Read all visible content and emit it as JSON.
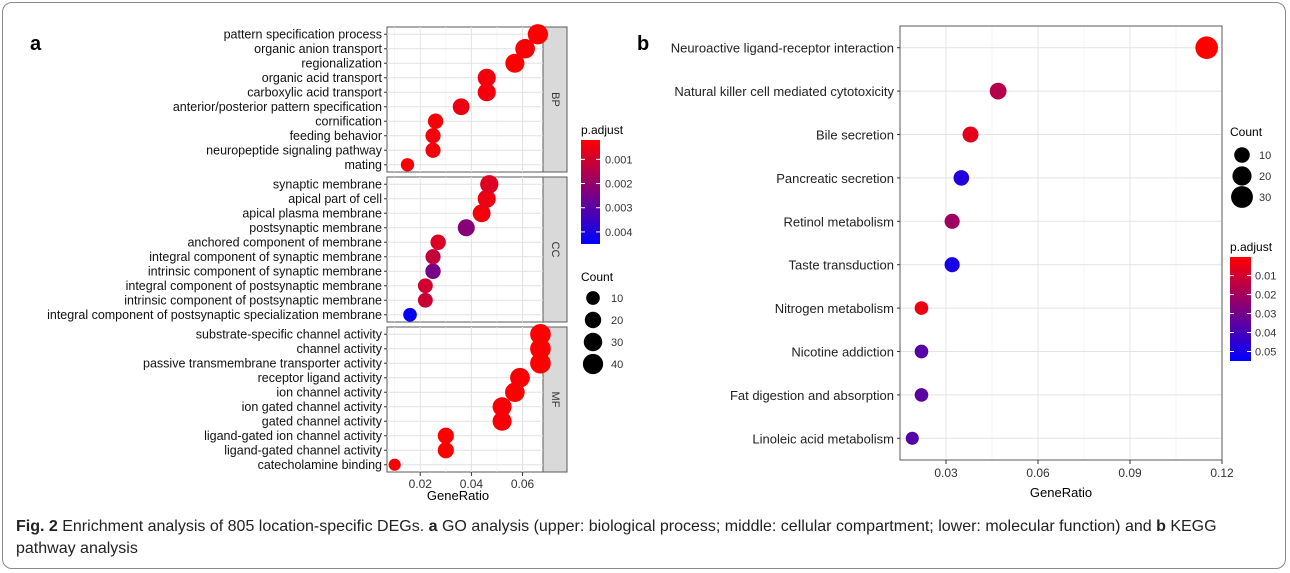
{
  "caption": {
    "fig_label": "Fig. 2",
    "text_1": "Enrichment analysis of 805 location-specific DEGs.",
    "label_a": "a",
    "text_2": "GO analysis (upper: biological process; middle: cellular compartment; lower: molecular function) and",
    "label_b": "b",
    "text_3": "KEGG pathway analysis"
  },
  "chart_data": [
    {
      "type": "scatter",
      "panel_label": "a",
      "xlabel": "GeneRatio",
      "x_ticks": [
        0.02,
        0.04,
        0.06
      ],
      "x_tick_labels": [
        "0.02",
        "0.04",
        "0.06"
      ],
      "xlim": [
        0.007,
        0.068
      ],
      "facets": [
        {
          "name": "BP",
          "points": [
            {
              "term": "pattern specification process",
              "x": 0.066,
              "count": 40,
              "p_adjust": 0.0002
            },
            {
              "term": "organic anion transport",
              "x": 0.061,
              "count": 36,
              "p_adjust": 0.0003
            },
            {
              "term": "regionalization",
              "x": 0.057,
              "count": 33,
              "p_adjust": 0.0002
            },
            {
              "term": "organic acid transport",
              "x": 0.046,
              "count": 28,
              "p_adjust": 0.0004
            },
            {
              "term": "carboxylic acid transport",
              "x": 0.046,
              "count": 28,
              "p_adjust": 0.0004
            },
            {
              "term": "anterior/posterior pattern specification",
              "x": 0.036,
              "count": 22,
              "p_adjust": 0.0005
            },
            {
              "term": "cornification",
              "x": 0.026,
              "count": 16,
              "p_adjust": 0.0003
            },
            {
              "term": "feeding behavior",
              "x": 0.025,
              "count": 15,
              "p_adjust": 0.0004
            },
            {
              "term": "neuropeptide signaling pathway",
              "x": 0.025,
              "count": 15,
              "p_adjust": 0.0004
            },
            {
              "term": "mating",
              "x": 0.015,
              "count": 9,
              "p_adjust": 0.0003
            }
          ]
        },
        {
          "name": "CC",
          "points": [
            {
              "term": "synaptic membrane",
              "x": 0.047,
              "count": 29,
              "p_adjust": 0.0008
            },
            {
              "term": "apical part of cell",
              "x": 0.046,
              "count": 28,
              "p_adjust": 0.0005
            },
            {
              "term": "apical plasma membrane",
              "x": 0.044,
              "count": 27,
              "p_adjust": 0.0004
            },
            {
              "term": "postsynaptic membrane",
              "x": 0.038,
              "count": 23,
              "p_adjust": 0.0022
            },
            {
              "term": "anchored component of membrane",
              "x": 0.027,
              "count": 16,
              "p_adjust": 0.0008
            },
            {
              "term": "integral component of synaptic membrane",
              "x": 0.025,
              "count": 15,
              "p_adjust": 0.0012
            },
            {
              "term": "intrinsic component of synaptic membrane",
              "x": 0.025,
              "count": 16,
              "p_adjust": 0.0025
            },
            {
              "term": "integral component of postsynaptic membrane",
              "x": 0.022,
              "count": 14,
              "p_adjust": 0.001
            },
            {
              "term": "intrinsic component of postsynaptic membrane",
              "x": 0.022,
              "count": 14,
              "p_adjust": 0.0011
            },
            {
              "term": "integral component of postsynaptic specialization membrane",
              "x": 0.016,
              "count": 10,
              "p_adjust": 0.0044
            }
          ]
        },
        {
          "name": "MF",
          "points": [
            {
              "term": "substrate-specific channel activity",
              "x": 0.067,
              "count": 42,
              "p_adjust": 0.0002
            },
            {
              "term": "channel activity",
              "x": 0.067,
              "count": 42,
              "p_adjust": 0.0002
            },
            {
              "term": "passive transmembrane transporter activity",
              "x": 0.067,
              "count": 42,
              "p_adjust": 0.0002
            },
            {
              "term": "receptor ligand activity",
              "x": 0.059,
              "count": 37,
              "p_adjust": 0.0003
            },
            {
              "term": "ion channel activity",
              "x": 0.057,
              "count": 36,
              "p_adjust": 0.0002
            },
            {
              "term": "ion gated channel activity",
              "x": 0.052,
              "count": 33,
              "p_adjust": 0.0003
            },
            {
              "term": "gated channel activity",
              "x": 0.052,
              "count": 33,
              "p_adjust": 0.0003
            },
            {
              "term": "ligand-gated ion channel activity",
              "x": 0.03,
              "count": 19,
              "p_adjust": 0.0002
            },
            {
              "term": "ligand-gated channel activity",
              "x": 0.03,
              "count": 19,
              "p_adjust": 0.0002
            },
            {
              "term": "catecholamine binding",
              "x": 0.01,
              "count": 6,
              "p_adjust": 0.0003
            }
          ]
        }
      ],
      "legend_color": {
        "title": "p.adjust",
        "min": 0.0002,
        "max": 0.0045,
        "ticks": [
          0.001,
          0.002,
          0.003,
          0.004
        ],
        "tick_labels": [
          "0.001",
          "0.002",
          "0.003",
          "0.004"
        ],
        "colors": [
          "#ff0000",
          "#0000ff"
        ]
      },
      "legend_size": {
        "title": "Count",
        "values": [
          10,
          20,
          30,
          40
        ],
        "labels": [
          "10",
          "20",
          "30",
          "40"
        ]
      },
      "legend_placement": "right",
      "grid": true
    },
    {
      "type": "scatter",
      "panel_label": "b",
      "xlabel": "GeneRatio",
      "x_ticks": [
        0.03,
        0.06,
        0.09,
        0.12
      ],
      "x_tick_labels": [
        "0.03",
        "0.06",
        "0.09",
        "0.12"
      ],
      "xlim": [
        0.015,
        0.12
      ],
      "points": [
        {
          "term": "Neuroactive ligand-receptor interaction",
          "x": 0.115,
          "count": 33,
          "p_adjust": 0.0002
        },
        {
          "term": "Natural killer cell mediated cytotoxicity",
          "x": 0.047,
          "count": 13,
          "p_adjust": 0.016
        },
        {
          "term": "Bile secretion",
          "x": 0.038,
          "count": 11,
          "p_adjust": 0.006
        },
        {
          "term": "Pancreatic secretion",
          "x": 0.035,
          "count": 10,
          "p_adjust": 0.048
        },
        {
          "term": "Retinol metabolism",
          "x": 0.032,
          "count": 9,
          "p_adjust": 0.021
        },
        {
          "term": "Taste transduction",
          "x": 0.032,
          "count": 9,
          "p_adjust": 0.05
        },
        {
          "term": "Nitrogen metabolism",
          "x": 0.022,
          "count": 6,
          "p_adjust": 0.004
        },
        {
          "term": "Nicotine addiction",
          "x": 0.022,
          "count": 6,
          "p_adjust": 0.036
        },
        {
          "term": "Fat digestion and absorption",
          "x": 0.022,
          "count": 6,
          "p_adjust": 0.035
        },
        {
          "term": "Linoleic acid metabolism",
          "x": 0.019,
          "count": 5,
          "p_adjust": 0.037
        }
      ],
      "legend_size": {
        "title": "Count",
        "values": [
          10,
          20,
          30
        ],
        "labels": [
          "10",
          "20",
          "30"
        ]
      },
      "legend_color": {
        "title": "p.adjust",
        "min": 0.0002,
        "max": 0.055,
        "ticks": [
          0.01,
          0.02,
          0.03,
          0.04,
          0.05
        ],
        "tick_labels": [
          "0.01",
          "0.02",
          "0.03",
          "0.04",
          "0.05"
        ],
        "colors": [
          "#ff0000",
          "#0000ff"
        ]
      },
      "legend_placement": "right",
      "grid": true
    }
  ]
}
